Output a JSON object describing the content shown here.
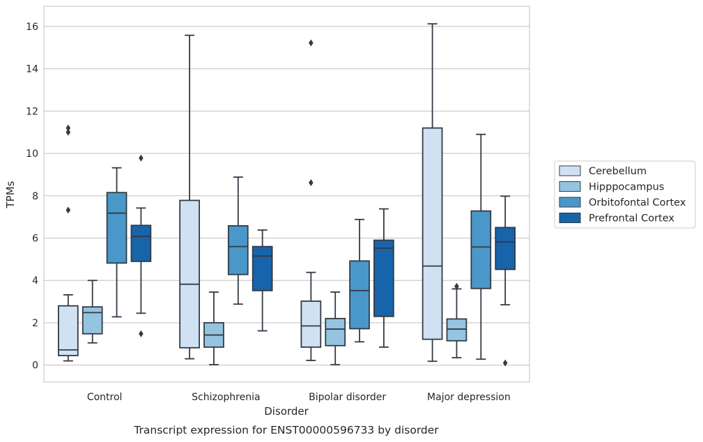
{
  "chart_data": {
    "type": "box",
    "title": "",
    "caption": "Transcript expression for ENST00000596733 by disorder",
    "xlabel": "Disorder",
    "ylabel": "TPMs",
    "ylim": [
      -0.8,
      16.95
    ],
    "yticks": [
      0,
      2,
      4,
      6,
      8,
      10,
      12,
      14,
      16
    ],
    "grid": "horizontal",
    "legend_position": "right",
    "categories": [
      "Control",
      "Schizophrenia",
      "Bipolar disorder",
      "Major depression"
    ],
    "series": [
      {
        "name": "Cerebellum",
        "color": "#d0e1f2",
        "boxes": [
          {
            "whisker_low": 0.2,
            "q1": 0.45,
            "median": 0.72,
            "q3": 2.8,
            "whisker_high": 3.32,
            "outliers": [
              7.32,
              11.0,
              11.2
            ]
          },
          {
            "whisker_low": 0.3,
            "q1": 0.82,
            "median": 3.82,
            "q3": 7.78,
            "whisker_high": 15.58,
            "outliers": []
          },
          {
            "whisker_low": 0.22,
            "q1": 0.85,
            "median": 1.85,
            "q3": 3.02,
            "whisker_high": 4.38,
            "outliers": [
              8.62,
              15.22
            ]
          },
          {
            "whisker_low": 0.18,
            "q1": 1.22,
            "median": 4.68,
            "q3": 11.2,
            "whisker_high": 16.12,
            "outliers": []
          }
        ]
      },
      {
        "name": "Hipppocampus",
        "color": "#94c4df",
        "boxes": [
          {
            "whisker_low": 1.05,
            "q1": 1.48,
            "median": 2.48,
            "q3": 2.75,
            "whisker_high": 4.0,
            "outliers": []
          },
          {
            "whisker_low": 0.02,
            "q1": 0.85,
            "median": 1.42,
            "q3": 2.0,
            "whisker_high": 3.45,
            "outliers": []
          },
          {
            "whisker_low": 0.02,
            "q1": 0.92,
            "median": 1.7,
            "q3": 2.2,
            "whisker_high": 3.45,
            "outliers": []
          },
          {
            "whisker_low": 0.35,
            "q1": 1.15,
            "median": 1.7,
            "q3": 2.18,
            "whisker_high": 3.6,
            "outliers": [
              3.72
            ]
          }
        ]
      },
      {
        "name": "Orbitofontal Cortex",
        "color": "#4a98c9",
        "boxes": [
          {
            "whisker_low": 2.28,
            "q1": 4.82,
            "median": 7.18,
            "q3": 8.15,
            "whisker_high": 9.32,
            "outliers": []
          },
          {
            "whisker_low": 2.88,
            "q1": 4.28,
            "median": 5.6,
            "q3": 6.58,
            "whisker_high": 8.88,
            "outliers": []
          },
          {
            "whisker_low": 1.1,
            "q1": 1.72,
            "median": 3.52,
            "q3": 4.92,
            "whisker_high": 6.88,
            "outliers": []
          },
          {
            "whisker_low": 0.28,
            "q1": 3.62,
            "median": 5.58,
            "q3": 7.28,
            "whisker_high": 10.9,
            "outliers": []
          }
        ]
      },
      {
        "name": "Prefrontal Cortex",
        "color": "#1764ab",
        "boxes": [
          {
            "whisker_low": 2.45,
            "q1": 4.9,
            "median": 6.08,
            "q3": 6.6,
            "whisker_high": 7.42,
            "outliers": [
              1.48,
              9.78
            ]
          },
          {
            "whisker_low": 1.62,
            "q1": 3.52,
            "median": 5.15,
            "q3": 5.6,
            "whisker_high": 6.38,
            "outliers": []
          },
          {
            "whisker_low": 0.85,
            "q1": 2.3,
            "median": 5.52,
            "q3": 5.9,
            "whisker_high": 7.38,
            "outliers": []
          },
          {
            "whisker_low": 2.85,
            "q1": 4.52,
            "median": 5.82,
            "q3": 6.5,
            "whisker_high": 7.98,
            "outliers": [
              0.1
            ]
          }
        ]
      }
    ]
  }
}
